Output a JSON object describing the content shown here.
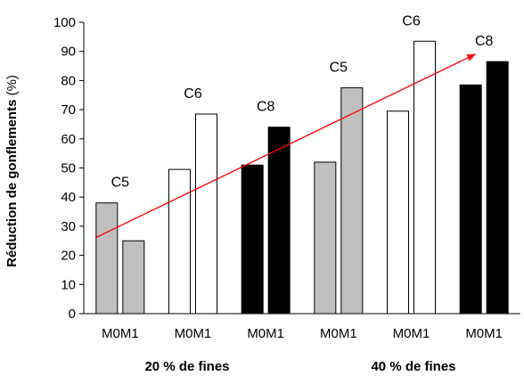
{
  "chart_data": {
    "type": "bar",
    "ylabel": "Réduction de gonflements",
    "ylabel_unit": "(%)",
    "ylim": [
      0,
      100
    ],
    "yticks": [
      0,
      10,
      20,
      30,
      40,
      50,
      60,
      70,
      80,
      90,
      100
    ],
    "categories": [
      "M0M1",
      "M0M1",
      "M0M1",
      "M0M1",
      "M0M1",
      "M0M1"
    ],
    "cement_labels": [
      "C5",
      "C6",
      "C8",
      "C5",
      "C6",
      "C8"
    ],
    "group_labels": [
      "20 % de fines",
      "40 % de fines"
    ],
    "series": [
      {
        "values": [
          38,
          49.5,
          51,
          52,
          69.5,
          78.5
        ]
      },
      {
        "values": [
          25,
          68.5,
          64,
          77.5,
          93.5,
          86.5
        ]
      }
    ],
    "bar_colors": [
      "#c0c0c0",
      "#ffffff",
      "#000000",
      "#c0c0c0",
      "#ffffff",
      "#000000"
    ],
    "trend_line": {
      "from": 26,
      "to": 89,
      "color": "#ff0000"
    },
    "grid": false,
    "legend": "none"
  }
}
